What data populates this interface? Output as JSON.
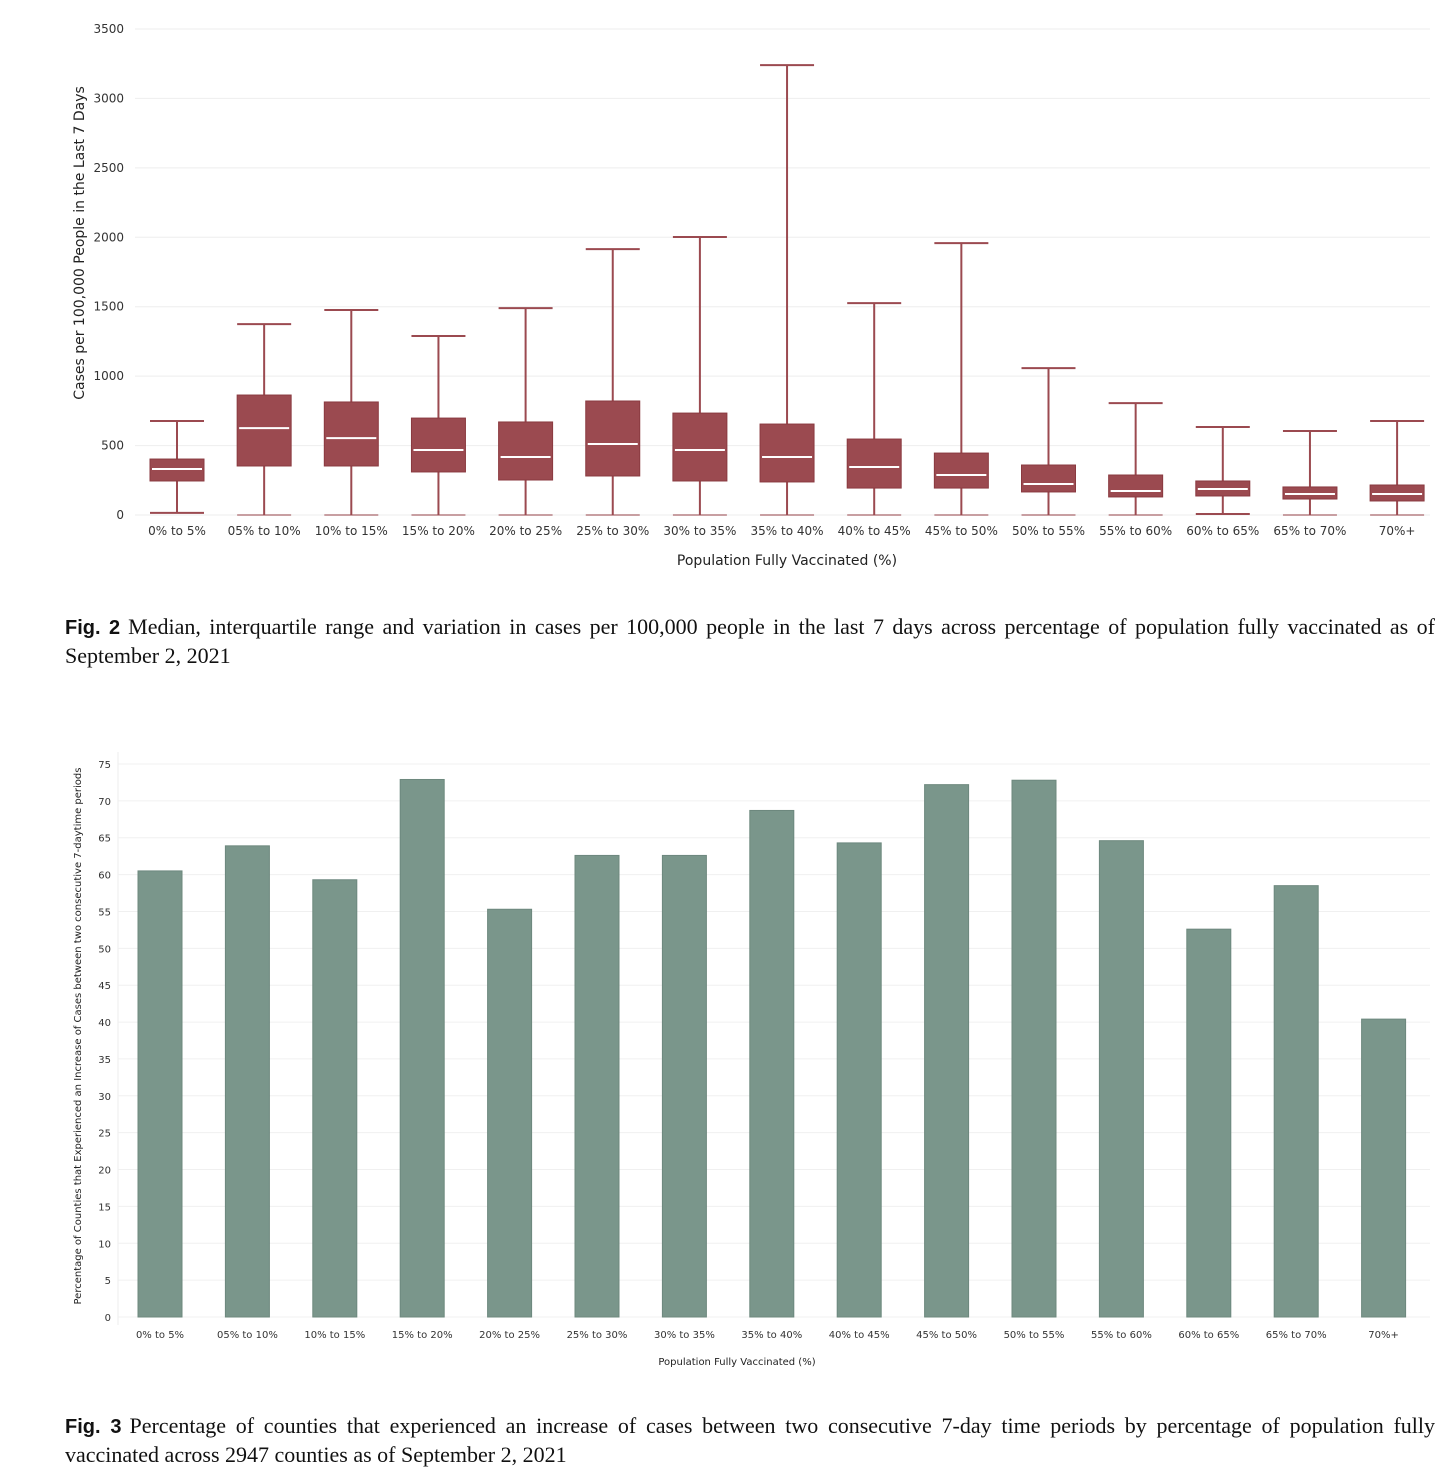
{
  "chart_data": [
    {
      "type": "boxplot",
      "title": "",
      "xlabel": "Population Fully Vaccinated (%)",
      "ylabel": "Cases per 100,000 People in the Last 7 Days",
      "ylim": [
        0,
        3500
      ],
      "yticks": [
        0,
        500,
        1000,
        1500,
        2000,
        2500,
        3000,
        3500
      ],
      "grid": true,
      "color": "#9b4a50",
      "categories": [
        "0% to 5%",
        "05% to 10%",
        "10% to 15%",
        "15% to 20%",
        "20% to 25%",
        "25% to 30%",
        "30% to 35%",
        "35% to 40%",
        "40% to 45%",
        "45% to 50%",
        "50% to 55%",
        "55% to 60%",
        "60% to 65%",
        "65% to 70%",
        "70%+"
      ],
      "series": [
        {
          "name": "min",
          "values": [
            15,
            0,
            0,
            0,
            0,
            0,
            0,
            0,
            0,
            0,
            0,
            0,
            7,
            0,
            0
          ]
        },
        {
          "name": "q1",
          "values": [
            245,
            353,
            353,
            310,
            252,
            281,
            245,
            238,
            194,
            194,
            166,
            130,
            137,
            115,
            101
          ]
        },
        {
          "name": "median",
          "values": [
            331,
            626,
            554,
            468,
            418,
            511,
            468,
            418,
            346,
            288,
            223,
            173,
            187,
            151,
            151
          ]
        },
        {
          "name": "q3",
          "values": [
            403,
            864,
            814,
            698,
            670,
            821,
            734,
            655,
            547,
            446,
            360,
            288,
            245,
            202,
            216
          ]
        },
        {
          "name": "max",
          "values": [
            677,
            1375,
            1476,
            1289,
            1490,
            1915,
            2002,
            3240,
            1526,
            1958,
            1058,
            806,
            634,
            605,
            677
          ]
        }
      ]
    },
    {
      "type": "bar",
      "title": "",
      "xlabel": "Population Fully Vaccinated (%)",
      "ylabel": "Percentage of Counties that Experienced an Increase of Cases between two consecutive 7-daytime periods",
      "ylim": [
        0,
        75
      ],
      "yticks": [
        0,
        5,
        10,
        15,
        20,
        25,
        30,
        35,
        40,
        45,
        50,
        55,
        60,
        65,
        70,
        75
      ],
      "grid": true,
      "color": "#7a968b",
      "categories": [
        "0% to 5%",
        "05% to 10%",
        "10% to 15%",
        "15% to 20%",
        "20% to 25%",
        "25% to 30%",
        "30% to 35%",
        "35% to 40%",
        "40% to 45%",
        "45% to 50%",
        "50% to 55%",
        "55% to 60%",
        "60% to 65%",
        "65% to 70%",
        "70%+"
      ],
      "values": [
        60.5,
        63.9,
        59.3,
        72.9,
        55.3,
        62.6,
        62.6,
        68.7,
        64.3,
        72.2,
        72.8,
        64.6,
        52.6,
        58.5,
        40.4
      ]
    }
  ],
  "captions": {
    "fig2_label": "Fig. 2",
    "fig2_text": "Median, interquartile range and variation in cases per 100,000 people in the last 7 days across percentage of population fully vaccinated as of September 2, 2021",
    "fig3_label": "Fig. 3",
    "fig3_text": "Percentage of counties that experienced an increase of cases between two consecutive 7-day time periods by percentage of population fully vaccinated across 2947 counties as of September 2, 2021"
  }
}
